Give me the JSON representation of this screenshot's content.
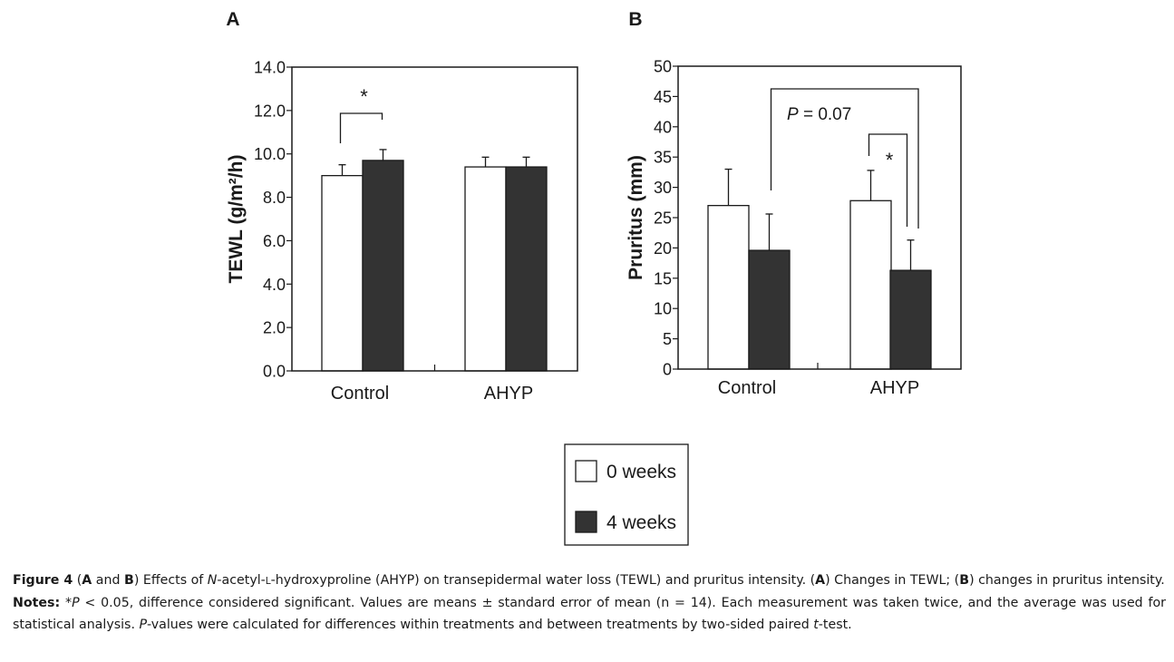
{
  "chart_data": [
    {
      "panel": "A",
      "type": "bar",
      "ylabel": "TEWL (g/m²/h)",
      "ylim": [
        0,
        14
      ],
      "yticks": [
        "0.0",
        "2.0",
        "4.0",
        "6.0",
        "8.0",
        "10.0",
        "12.0",
        "14.0"
      ],
      "tick_values": [
        0,
        2,
        4,
        6,
        8,
        10,
        12,
        14
      ],
      "categories": [
        "Control",
        "AHYP"
      ],
      "series": [
        {
          "name": "0 weeks",
          "values": [
            9.0,
            9.4
          ],
          "errors": [
            0.5,
            0.45
          ]
        },
        {
          "name": "4 weeks",
          "values": [
            9.7,
            9.4
          ],
          "errors": [
            0.5,
            0.45
          ]
        }
      ],
      "annotations": [
        {
          "text": "*",
          "group": 0,
          "between": [
            0,
            1
          ]
        }
      ]
    },
    {
      "panel": "B",
      "type": "bar",
      "ylabel": "Pruritus (mm)",
      "ylim": [
        0,
        50
      ],
      "yticks": [
        "0",
        "5",
        "10",
        "15",
        "20",
        "25",
        "30",
        "35",
        "40",
        "45",
        "50"
      ],
      "tick_values": [
        0,
        5,
        10,
        15,
        20,
        25,
        30,
        35,
        40,
        45,
        50
      ],
      "categories": [
        "Control",
        "AHYP"
      ],
      "series": [
        {
          "name": "0 weeks",
          "values": [
            27.0,
            27.8
          ],
          "errors": [
            6.0,
            5.0
          ]
        },
        {
          "name": "4 weeks",
          "values": [
            19.6,
            16.3
          ],
          "errors": [
            6.0,
            5.0
          ]
        }
      ],
      "annotations": [
        {
          "text": "*",
          "group": 1,
          "between": [
            0,
            1
          ]
        },
        {
          "text": "P = 0.07",
          "between_groups": [
            0,
            1
          ],
          "series": 1
        }
      ]
    }
  ],
  "legend": {
    "items": [
      {
        "label": "0 weeks",
        "color": "#ffffff"
      },
      {
        "label": "4 weeks",
        "color": "#333333"
      }
    ]
  },
  "caption": {
    "fig_label": "Figure 4",
    "part1": " (",
    "a1": "A",
    "part2": " and ",
    "b1": "B",
    "part3": ") Effects of ",
    "n_italic": "N",
    "part4": "-acetyl-",
    "l_small": "L",
    "part5": "-hydroxyproline (AHYP) on transepidermal water loss (TEWL) and pruritus intensity. (",
    "a2": "A",
    "part6": ") Changes in TEWL; (",
    "b2": "B",
    "part7": ") changes in pruritus intensity.",
    "notes_label": "Notes:",
    "notes_p1": " *",
    "p_italic1": "P",
    "notes_p2": " < 0.05, difference considered significant. Values are means ± standard error of mean (n = 14). Each measurement was taken twice, and the average was used for statistical analysis. ",
    "p_italic2": "P",
    "notes_p3": "-values were calculated for differences within treatments and between treatments by two-sided paired ",
    "t_italic": "t",
    "notes_p4": "-test."
  },
  "colors": {
    "bar_dark": "#333333",
    "bar_light": "#ffffff",
    "axis": "#1a1a1a"
  }
}
